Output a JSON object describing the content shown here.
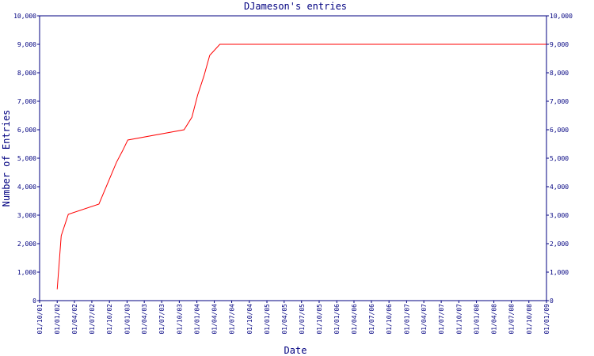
{
  "chart_data": {
    "type": "line",
    "title": "DJameson's entries",
    "x_label": "Date",
    "y_label": "Number of Entries",
    "x": [
      "2002-01-01",
      "2002-01-22",
      "2002-02-28",
      "2002-08-07",
      "2002-11-07",
      "2002-12-10",
      "2003-01-05",
      "2003-10-26",
      "2003-12-06",
      "2004-01-05",
      "2004-02-07",
      "2004-03-08",
      "2004-04-30",
      "2009-01-01"
    ],
    "series": [
      {
        "name": "DJameson",
        "color": "#ff0000",
        "values": [
          400,
          2280,
          3030,
          3390,
          4860,
          5280,
          5640,
          6000,
          6440,
          7220,
          7890,
          8610,
          9000,
          9000
        ]
      }
    ],
    "xlim": [
      "2001-10-01",
      "2009-01-01"
    ],
    "xticks": [
      {
        "value": "2001-10-01",
        "label": "01/10/01"
      },
      {
        "value": "2002-01-01",
        "label": "01/01/02"
      },
      {
        "value": "2002-04-01",
        "label": "01/04/02"
      },
      {
        "value": "2002-07-01",
        "label": "01/07/02"
      },
      {
        "value": "2002-10-01",
        "label": "01/10/02"
      },
      {
        "value": "2003-01-01",
        "label": "01/01/03"
      },
      {
        "value": "2003-04-01",
        "label": "01/04/03"
      },
      {
        "value": "2003-07-01",
        "label": "01/07/03"
      },
      {
        "value": "2003-10-01",
        "label": "01/10/03"
      },
      {
        "value": "2004-01-01",
        "label": "01/01/04"
      },
      {
        "value": "2004-04-01",
        "label": "01/04/04"
      },
      {
        "value": "2004-07-01",
        "label": "01/07/04"
      },
      {
        "value": "2004-10-01",
        "label": "01/10/04"
      },
      {
        "value": "2005-01-01",
        "label": "01/01/05"
      },
      {
        "value": "2005-04-01",
        "label": "01/04/05"
      },
      {
        "value": "2005-07-01",
        "label": "01/07/05"
      },
      {
        "value": "2005-10-01",
        "label": "01/10/05"
      },
      {
        "value": "2006-01-01",
        "label": "01/01/06"
      },
      {
        "value": "2006-04-01",
        "label": "01/04/06"
      },
      {
        "value": "2006-07-01",
        "label": "01/07/06"
      },
      {
        "value": "2006-10-01",
        "label": "01/10/06"
      },
      {
        "value": "2007-01-01",
        "label": "01/01/07"
      },
      {
        "value": "2007-04-01",
        "label": "01/04/07"
      },
      {
        "value": "2007-07-01",
        "label": "01/07/07"
      },
      {
        "value": "2007-10-01",
        "label": "01/10/07"
      },
      {
        "value": "2008-01-01",
        "label": "01/01/08"
      },
      {
        "value": "2008-04-01",
        "label": "01/04/08"
      },
      {
        "value": "2008-07-01",
        "label": "01/07/08"
      },
      {
        "value": "2008-10-01",
        "label": "01/10/08"
      },
      {
        "value": "2009-01-01",
        "label": "01/01/09"
      }
    ],
    "ylim": [
      0,
      10000
    ],
    "yticks": [
      0,
      {
        "value": 1000,
        "label": "1,000"
      },
      {
        "value": 2000,
        "label": "2,000"
      },
      {
        "value": 3000,
        "label": "3,000"
      },
      {
        "value": 4000,
        "label": "4,000"
      },
      {
        "value": 5000,
        "label": "5,000"
      },
      {
        "value": 6000,
        "label": "6,000"
      },
      {
        "value": 7000,
        "label": "7,000"
      },
      {
        "value": 8000,
        "label": "8,000"
      },
      {
        "value": 9000,
        "label": "9,000"
      },
      {
        "value": 10000,
        "label": "10,000"
      }
    ],
    "axis_color": "#000080",
    "grid": false
  }
}
